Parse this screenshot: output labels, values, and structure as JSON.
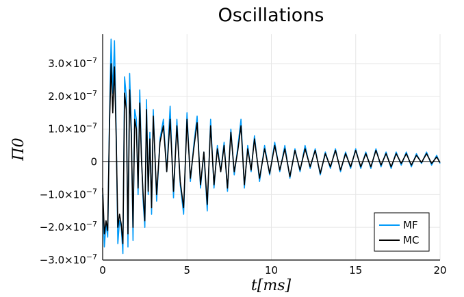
{
  "chart_data": {
    "type": "line",
    "title": "Oscillations",
    "xlabel": "t[ms]",
    "ylabel": "Π0",
    "xlim": [
      0,
      20
    ],
    "ylim": [
      -3e-07,
      3.9e-07
    ],
    "grid": true,
    "legend_position": "bottom-right",
    "x_ticks": [
      {
        "value": 0,
        "label": "0"
      },
      {
        "value": 5,
        "label": "5"
      },
      {
        "value": 10,
        "label": "10"
      },
      {
        "value": 15,
        "label": "15"
      },
      {
        "value": 20,
        "label": "20"
      }
    ],
    "y_ticks": [
      {
        "value": -3e-07,
        "label": "−3.0×10",
        "exp": "−7"
      },
      {
        "value": -2e-07,
        "label": "−2.0×10",
        "exp": "−7"
      },
      {
        "value": -1e-07,
        "label": "−1.0×10",
        "exp": "−7"
      },
      {
        "value": 0,
        "label": "0",
        "exp": ""
      },
      {
        "value": 1e-07,
        "label": "1.0×10",
        "exp": "−7"
      },
      {
        "value": 2e-07,
        "label": "2.0×10",
        "exp": "−7"
      },
      {
        "value": 3e-07,
        "label": "3.0×10",
        "exp": "−7"
      }
    ],
    "series": [
      {
        "name": "MF",
        "color": "#009af9",
        "x": [
          0,
          0.1,
          0.2,
          0.3,
          0.4,
          0.5,
          0.6,
          0.7,
          0.8,
          0.9,
          1.0,
          1.1,
          1.2,
          1.3,
          1.4,
          1.5,
          1.6,
          1.7,
          1.8,
          1.9,
          2.0,
          2.1,
          2.2,
          2.3,
          2.4,
          2.5,
          2.6,
          2.7,
          2.8,
          2.9,
          3.0,
          3.2,
          3.4,
          3.6,
          3.8,
          4.0,
          4.2,
          4.4,
          4.6,
          4.8,
          5.0,
          5.2,
          5.4,
          5.6,
          5.8,
          6.0,
          6.2,
          6.4,
          6.6,
          6.8,
          7.0,
          7.2,
          7.4,
          7.6,
          7.8,
          8.0,
          8.2,
          8.4,
          8.6,
          8.8,
          9.0,
          9.3,
          9.6,
          9.9,
          10.2,
          10.5,
          10.8,
          11.1,
          11.4,
          11.7,
          12.0,
          12.3,
          12.6,
          12.9,
          13.2,
          13.5,
          13.8,
          14.1,
          14.4,
          14.7,
          15.0,
          15.3,
          15.6,
          15.9,
          16.2,
          16.5,
          16.8,
          17.1,
          17.4,
          17.7,
          18.0,
          18.3,
          18.6,
          18.9,
          19.2,
          19.5,
          19.8,
          20.0
        ],
        "values": [
          -1e-07,
          -2.6e-07,
          -1.9e-07,
          -2.3e-07,
          1.2e-07,
          3.75e-07,
          2.1e-07,
          3.7e-07,
          1e-07,
          -2.5e-07,
          -1.8e-07,
          -2e-07,
          -2.8e-07,
          2.6e-07,
          2e-07,
          -2.6e-07,
          2.7e-07,
          1e-07,
          -2.4e-07,
          1.6e-07,
          1.3e-07,
          -1e-07,
          2.2e-07,
          2e-08,
          -1.2e-07,
          -2e-07,
          1.9e-07,
          -1e-07,
          9e-08,
          -1.6e-07,
          1.6e-07,
          -1.2e-07,
          7e-08,
          1.3e-07,
          -3e-08,
          1.7e-07,
          -1.1e-07,
          1.3e-07,
          -7e-08,
          -1.6e-07,
          1.5e-07,
          -6e-08,
          5e-08,
          1.4e-07,
          -8e-08,
          3e-08,
          -1.5e-07,
          1.3e-07,
          -8e-08,
          5e-08,
          -3e-08,
          6e-08,
          -9e-08,
          1e-07,
          -4e-08,
          4e-08,
          1.3e-07,
          -8e-08,
          5e-08,
          -3e-08,
          8e-08,
          -6e-08,
          5e-08,
          -4e-08,
          6e-08,
          -3e-08,
          5e-08,
          -5e-08,
          4e-08,
          -3e-08,
          5e-08,
          -2e-08,
          4e-08,
          -4e-08,
          3e-08,
          -2e-08,
          4e-08,
          -3e-08,
          3e-08,
          -2e-08,
          4e-08,
          -2e-08,
          3e-08,
          -2e-08,
          4e-08,
          -1.5e-08,
          3e-08,
          -2e-08,
          3e-08,
          -1e-08,
          3e-08,
          -1.5e-08,
          2.5e-08,
          -5e-09,
          3e-08,
          -1e-08,
          2e-08,
          -5e-09
        ]
      },
      {
        "name": "MC",
        "color": "#000000",
        "x": [
          0,
          0.1,
          0.2,
          0.3,
          0.4,
          0.5,
          0.6,
          0.7,
          0.8,
          0.9,
          1.0,
          1.1,
          1.2,
          1.3,
          1.4,
          1.5,
          1.6,
          1.7,
          1.8,
          1.9,
          2.0,
          2.1,
          2.2,
          2.3,
          2.4,
          2.5,
          2.6,
          2.7,
          2.8,
          2.9,
          3.0,
          3.2,
          3.4,
          3.6,
          3.8,
          4.0,
          4.2,
          4.4,
          4.6,
          4.8,
          5.0,
          5.2,
          5.4,
          5.6,
          5.8,
          6.0,
          6.2,
          6.4,
          6.6,
          6.8,
          7.0,
          7.2,
          7.4,
          7.6,
          7.8,
          8.0,
          8.2,
          8.4,
          8.6,
          8.8,
          9.0,
          9.3,
          9.6,
          9.9,
          10.2,
          10.5,
          10.8,
          11.1,
          11.4,
          11.7,
          12.0,
          12.3,
          12.6,
          12.9,
          13.2,
          13.5,
          13.8,
          14.1,
          14.4,
          14.7,
          15.0,
          15.3,
          15.6,
          15.9,
          16.2,
          16.5,
          16.8,
          17.1,
          17.4,
          17.7,
          18.0,
          18.3,
          18.6,
          18.9,
          19.2,
          19.5,
          19.8,
          20.0
        ],
        "values": [
          -8e-08,
          -2.2e-07,
          -1.8e-07,
          -2.1e-07,
          1e-07,
          3e-07,
          1.5e-07,
          2.9e-07,
          8e-08,
          -2e-07,
          -1.6e-07,
          -1.9e-07,
          -2.5e-07,
          2.1e-07,
          1.6e-07,
          -2.2e-07,
          2.2e-07,
          8e-08,
          -2e-07,
          1.3e-07,
          1e-07,
          -8e-08,
          1.8e-07,
          1e-08,
          -1e-07,
          -1.8e-07,
          1.6e-07,
          -9e-08,
          7e-08,
          -1.4e-07,
          1.4e-07,
          -1e-07,
          6e-08,
          1.1e-07,
          -3e-08,
          1.3e-07,
          -9e-08,
          1.1e-07,
          -6e-08,
          -1.4e-07,
          1.3e-07,
          -5e-08,
          4e-08,
          1.2e-07,
          -7e-08,
          3e-08,
          -1.3e-07,
          1.1e-07,
          -7e-08,
          4e-08,
          -3e-08,
          5e-08,
          -8e-08,
          9e-08,
          -3e-08,
          3e-08,
          1.1e-07,
          -7e-08,
          4e-08,
          -2.5e-08,
          7e-08,
          -5e-08,
          4e-08,
          -3.5e-08,
          5e-08,
          -2.5e-08,
          4e-08,
          -4.5e-08,
          3.5e-08,
          -2.5e-08,
          4e-08,
          -1.5e-08,
          3.5e-08,
          -3.5e-08,
          2.5e-08,
          -1.5e-08,
          3.5e-08,
          -2.5e-08,
          2.5e-08,
          -1.5e-08,
          3.5e-08,
          -1.5e-08,
          2.5e-08,
          -1.5e-08,
          3.5e-08,
          -1e-08,
          2.5e-08,
          -1.5e-08,
          2.5e-08,
          -5e-09,
          2.5e-08,
          -1e-08,
          2e-08,
          -2e-09,
          2.5e-08,
          -5e-09,
          1.5e-08,
          -2e-09
        ]
      }
    ]
  }
}
